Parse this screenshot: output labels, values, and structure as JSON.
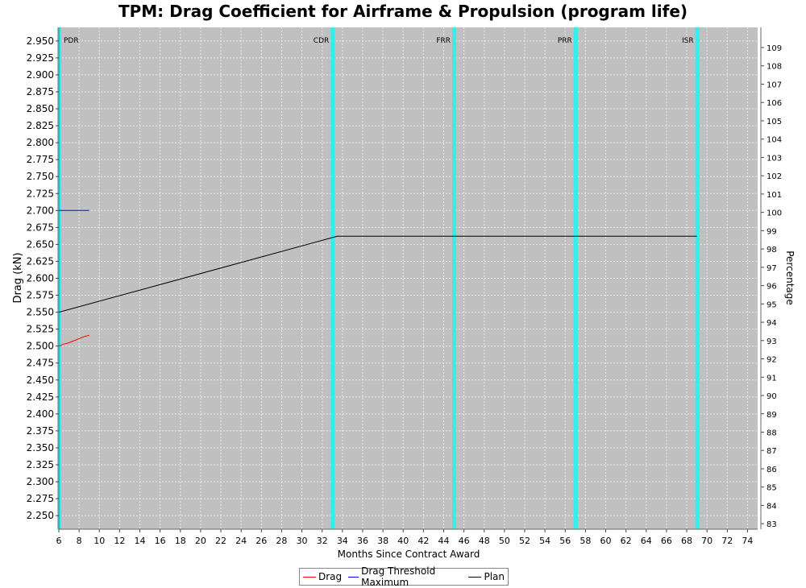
{
  "chart_data": {
    "type": "line",
    "title": "TPM: Drag Coefficient for Airframe & Propulsion (program life)",
    "xlabel": "Months Since Contract Award",
    "ylabel": "Drag (kN)",
    "y2label": "Percentage",
    "xlim": [
      6,
      75
    ],
    "ylim": [
      2.23,
      2.97
    ],
    "y2lim": [
      82.7,
      110.1
    ],
    "x_ticks": [
      6,
      8,
      10,
      12,
      14,
      16,
      18,
      20,
      22,
      24,
      26,
      28,
      30,
      32,
      34,
      36,
      38,
      40,
      42,
      44,
      46,
      48,
      50,
      52,
      54,
      56,
      58,
      60,
      62,
      64,
      66,
      68,
      70,
      72,
      74
    ],
    "y_ticks": [
      2.25,
      2.275,
      2.3,
      2.325,
      2.35,
      2.375,
      2.4,
      2.425,
      2.45,
      2.475,
      2.5,
      2.525,
      2.55,
      2.575,
      2.6,
      2.625,
      2.65,
      2.675,
      2.7,
      2.725,
      2.75,
      2.775,
      2.8,
      2.825,
      2.85,
      2.875,
      2.9,
      2.925,
      2.95
    ],
    "y_tick_labels": [
      "2.250",
      "2.275",
      "2.300",
      "2.325",
      "2.350",
      "2.375",
      "2.400",
      "2.425",
      "2.450",
      "2.475",
      "2.500",
      "2.525",
      "2.550",
      "2.575",
      "2.600",
      "2.625",
      "2.650",
      "2.675",
      "2.700",
      "2.725",
      "2.750",
      "2.775",
      "2.800",
      "2.825",
      "2.850",
      "2.875",
      "2.900",
      "2.925",
      "2.950"
    ],
    "y2_ticks": [
      83,
      84,
      85,
      86,
      87,
      88,
      89,
      90,
      91,
      92,
      93,
      94,
      95,
      96,
      97,
      98,
      99,
      100,
      101,
      102,
      103,
      104,
      105,
      106,
      107,
      108,
      109
    ],
    "grid": true,
    "legend_placement": "bottom",
    "milestones": [
      {
        "label": "PDR",
        "x": 6
      },
      {
        "label": "CDR",
        "x": 33
      },
      {
        "label": "FRR",
        "x": 45
      },
      {
        "label": "PRR",
        "x": 57
      },
      {
        "label": "ISR",
        "x": 69
      }
    ],
    "series": [
      {
        "name": "Drag",
        "color": "#ff0000",
        "x": [
          6,
          6.5,
          7,
          7.5,
          8,
          8.5,
          9
        ],
        "values": [
          2.5,
          2.503,
          2.505,
          2.508,
          2.511,
          2.514,
          2.516
        ]
      },
      {
        "name": "Drag Threshold Maximum",
        "color": "#0000ff",
        "x": [
          6,
          9
        ],
        "values": [
          2.7,
          2.7
        ]
      },
      {
        "name": "Plan",
        "color": "#000000",
        "x": [
          6,
          33.5,
          69
        ],
        "values": [
          2.55,
          2.662,
          2.662
        ]
      }
    ],
    "colors": {
      "plot_background": "#c0c0c0",
      "milestone": "#33eeee",
      "grid": "#e8e8e8"
    }
  }
}
